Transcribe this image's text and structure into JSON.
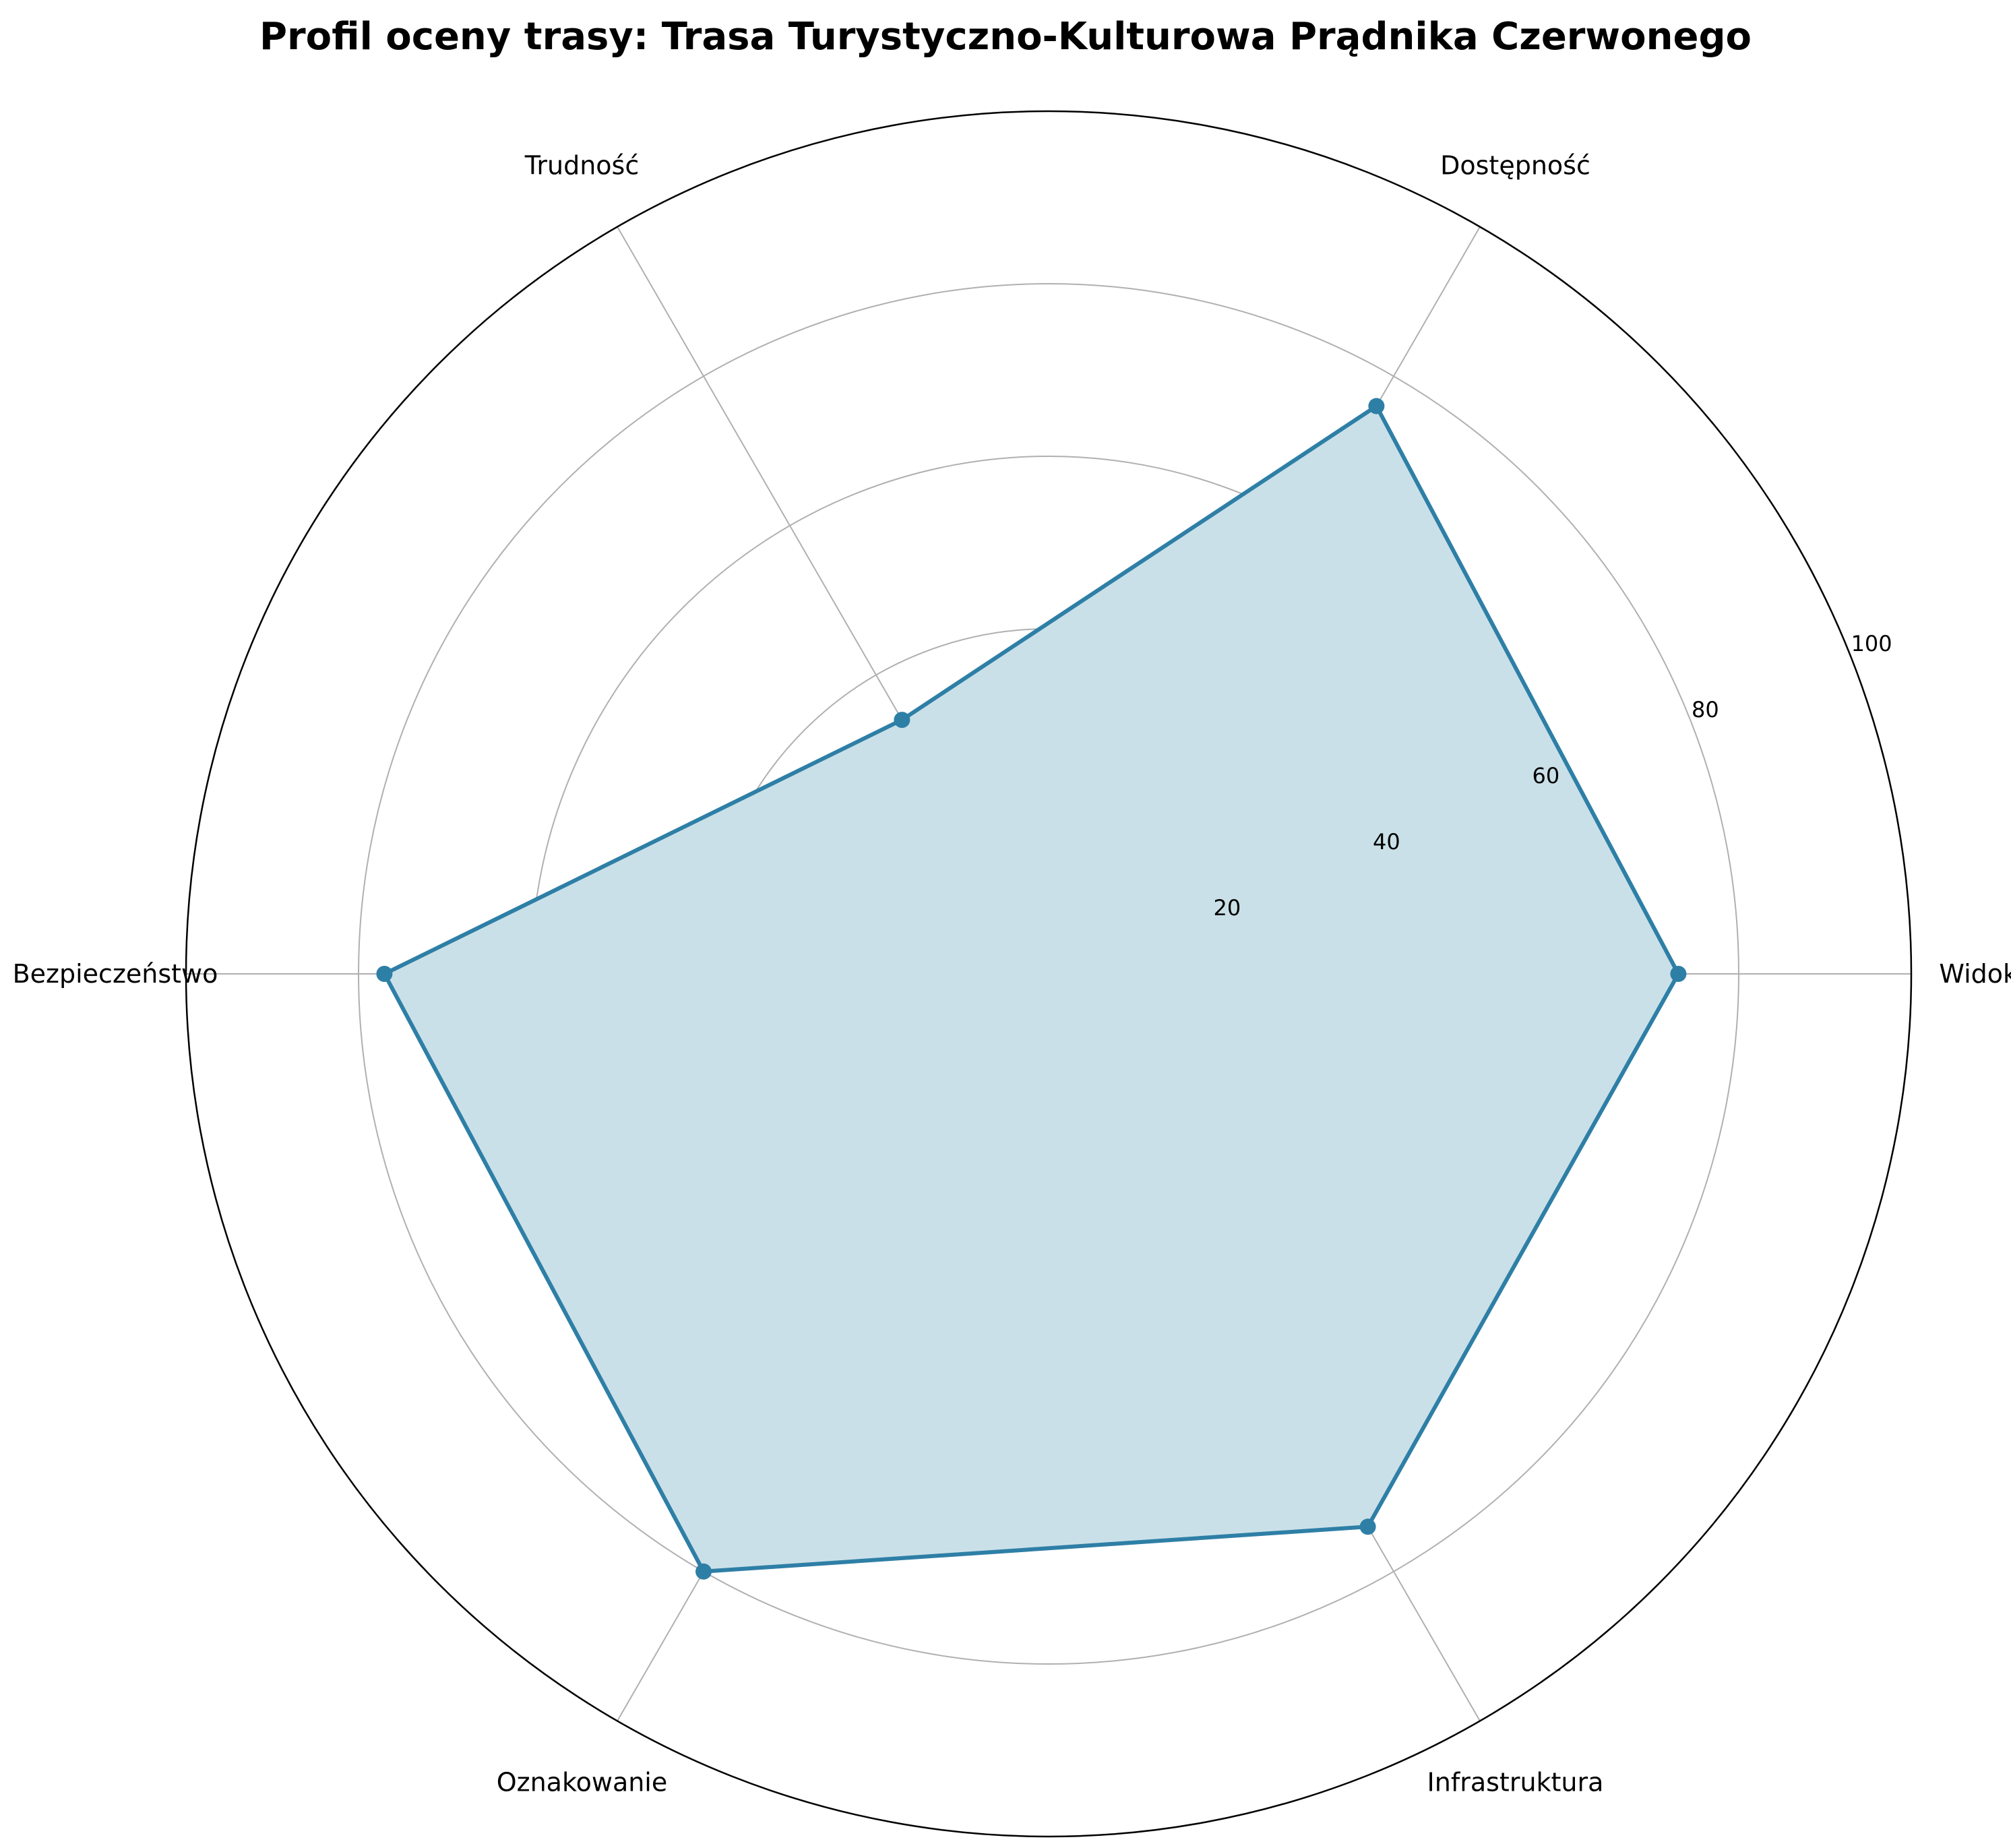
{
  "chart_data": {
    "type": "radar",
    "title": "Profil oceny trasy: Trasa Turystyczno-Kulturowa Prądnika Czerwonego",
    "categories": [
      "Widoki",
      "Dostępność",
      "Trudność",
      "Bezpieczeństwo",
      "Oznakowanie",
      "Infrastruktura"
    ],
    "series": [
      {
        "values": [
          73,
          76,
          34,
          77,
          80,
          74
        ]
      }
    ],
    "rlim": [
      0,
      100
    ],
    "rticks": [
      20,
      40,
      60,
      80,
      100
    ],
    "grid": true,
    "legend": "none",
    "colors": {
      "line": "#2e7fa6",
      "fill": "#cae0e8",
      "grid": "#b0b0b0",
      "outer": "#000000"
    }
  }
}
